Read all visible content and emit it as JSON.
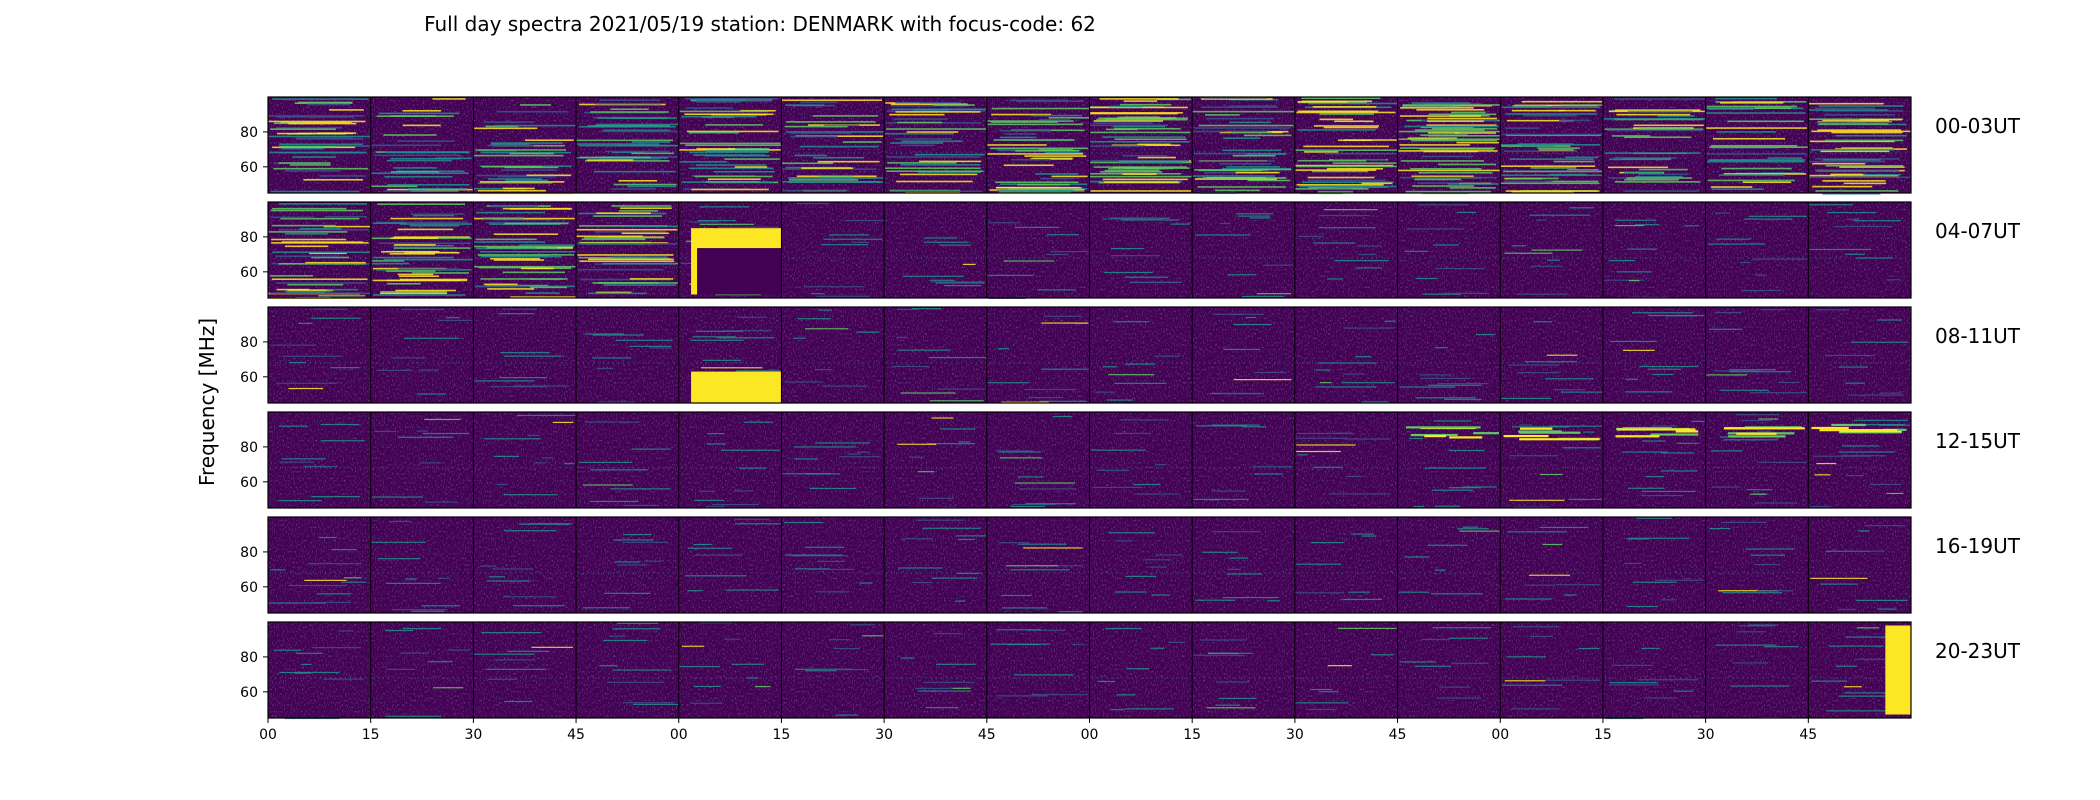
{
  "title": "Full day spectra 2021/05/19 station: DENMARK with focus-code: 62",
  "colors": {
    "background": "#ffffff",
    "frame": "#000000",
    "colormap": [
      "#440154",
      "#3b528b",
      "#21918c",
      "#5ec962",
      "#fde725"
    ]
  },
  "chart_data": {
    "type": "heatmap",
    "title": "Full day spectra 2021/05/19 station: DENMARK with focus-code: 62",
    "ylabel": "Frequency [MHz]",
    "xlabel": "",
    "colormap": "viridis",
    "ylim": [
      45,
      100
    ],
    "yticks": [
      60,
      80
    ],
    "ytick_labels": [
      "60",
      "80"
    ],
    "xtick_labels": [
      "00",
      "15",
      "30",
      "45",
      "00",
      "15",
      "30",
      "45",
      "00",
      "15",
      "30",
      "45",
      "00",
      "15",
      "30",
      "45"
    ],
    "panels_per_row": 16,
    "panel_minutes": 15,
    "rows": [
      {
        "label": "00-03UT",
        "activity": [
          0.55,
          0.4,
          0.45,
          0.5,
          0.6,
          0.45,
          0.5,
          0.7,
          0.75,
          0.6,
          0.65,
          0.8,
          0.6,
          0.5,
          0.45,
          0.6
        ]
      },
      {
        "label": "04-07UT",
        "activity": [
          0.55,
          0.6,
          0.6,
          0.55,
          0.3,
          0.08,
          0.08,
          0.08,
          0.1,
          0.08,
          0.1,
          0.08,
          0.08,
          0.1,
          0.08,
          0.08
        ]
      },
      {
        "label": "08-11UT",
        "activity": [
          0.08,
          0.06,
          0.06,
          0.06,
          0.1,
          0.06,
          0.08,
          0.1,
          0.06,
          0.08,
          0.1,
          0.08,
          0.08,
          0.1,
          0.1,
          0.06
        ]
      },
      {
        "label": "12-15UT",
        "activity": [
          0.08,
          0.06,
          0.1,
          0.06,
          0.1,
          0.08,
          0.08,
          0.1,
          0.06,
          0.06,
          0.1,
          0.08,
          0.1,
          0.12,
          0.15,
          0.15
        ]
      },
      {
        "label": "16-19UT",
        "activity": [
          0.12,
          0.08,
          0.08,
          0.06,
          0.06,
          0.08,
          0.1,
          0.08,
          0.06,
          0.06,
          0.06,
          0.06,
          0.06,
          0.06,
          0.06,
          0.1
        ]
      },
      {
        "label": "20-23UT",
        "activity": [
          0.08,
          0.06,
          0.06,
          0.08,
          0.08,
          0.06,
          0.08,
          0.06,
          0.06,
          0.06,
          0.06,
          0.06,
          0.06,
          0.06,
          0.06,
          0.1
        ]
      }
    ],
    "features": [
      {
        "row": 1,
        "panel": 4,
        "type": "saturated_block",
        "freq_range": [
          47,
          85
        ],
        "note": "dark gap"
      },
      {
        "row": 2,
        "panel": 4,
        "type": "saturated_block",
        "freq_range": [
          45,
          63
        ]
      },
      {
        "row": 3,
        "panel": 11,
        "type": "burst",
        "freq_range": [
          86,
          92
        ]
      },
      {
        "row": 3,
        "panel": 12,
        "type": "burst",
        "freq_range": [
          85,
          93
        ]
      },
      {
        "row": 3,
        "panel": 13,
        "type": "burst",
        "freq_range": [
          86,
          92
        ]
      },
      {
        "row": 3,
        "panel": 14,
        "type": "burst",
        "freq_range": [
          85,
          92
        ]
      },
      {
        "row": 3,
        "panel": 15,
        "type": "burst",
        "freq_range": [
          88,
          94
        ]
      },
      {
        "row": 5,
        "panel": 15,
        "type": "saturated_block",
        "freq_range": [
          47,
          98
        ]
      }
    ]
  }
}
